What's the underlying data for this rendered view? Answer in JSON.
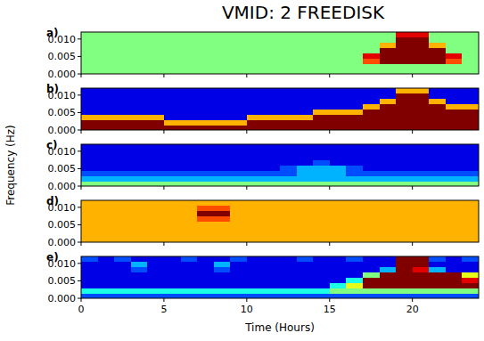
{
  "chart_data": {
    "type": "heatmap",
    "title": "VMID: 2 FREEDISK",
    "x_label": "Time (Hours)",
    "y_label": "Frequency (Hz)",
    "xlim": [
      0,
      24
    ],
    "ylim": [
      0,
      0.012
    ],
    "xticks": [
      0,
      5,
      10,
      15,
      20
    ],
    "yticks": [
      {
        "value": 0,
        "label": "0.000"
      },
      {
        "value": 0.005,
        "label": "0.005"
      },
      {
        "value": 0.01,
        "label": "0.010"
      }
    ],
    "x_bins": [
      0,
      1,
      2,
      3,
      4,
      5,
      6,
      7,
      8,
      9,
      10,
      11,
      12,
      13,
      14,
      15,
      16,
      17,
      18,
      19,
      20,
      21,
      22,
      23,
      24
    ],
    "y_bins": [
      0,
      0.0015,
      0.003,
      0.0045,
      0.006,
      0.0075,
      0.009,
      0.0105,
      0.012
    ],
    "color_range": [
      0,
      10
    ],
    "panels": [
      {
        "label": "a)",
        "cells": [
          [
            5,
            5,
            5,
            5,
            5,
            5,
            5,
            5,
            5,
            5,
            5,
            5,
            5,
            5,
            5,
            5,
            5,
            5,
            5,
            5,
            5,
            5,
            5,
            5
          ],
          [
            5,
            5,
            5,
            5,
            5,
            5,
            5,
            5,
            5,
            5,
            5,
            5,
            5,
            5,
            5,
            5,
            5,
            5,
            5,
            5,
            5,
            5,
            5,
            5
          ],
          [
            5,
            5,
            5,
            5,
            5,
            5,
            5,
            5,
            5,
            5,
            5,
            5,
            5,
            5,
            5,
            5,
            5,
            8,
            10,
            10,
            10,
            10,
            8,
            5
          ],
          [
            5,
            5,
            5,
            5,
            5,
            5,
            5,
            5,
            5,
            5,
            5,
            5,
            5,
            5,
            5,
            5,
            5,
            9,
            10,
            10,
            10,
            10,
            9,
            5
          ],
          [
            5,
            5,
            5,
            5,
            5,
            5,
            5,
            5,
            5,
            5,
            5,
            5,
            5,
            5,
            5,
            5,
            5,
            5,
            10,
            10,
            10,
            10,
            5,
            5
          ],
          [
            5,
            5,
            5,
            5,
            5,
            5,
            5,
            5,
            5,
            5,
            5,
            5,
            5,
            5,
            5,
            5,
            5,
            5,
            7,
            10,
            10,
            7,
            5,
            5
          ],
          [
            5,
            5,
            5,
            5,
            5,
            5,
            5,
            5,
            5,
            5,
            5,
            5,
            5,
            5,
            5,
            5,
            5,
            5,
            5,
            10,
            10,
            5,
            5,
            5
          ],
          [
            5,
            5,
            5,
            5,
            5,
            5,
            5,
            5,
            5,
            5,
            5,
            5,
            5,
            5,
            5,
            5,
            5,
            5,
            5,
            9,
            9,
            5,
            5,
            5
          ]
        ]
      },
      {
        "label": "b)",
        "cells": [
          [
            10,
            10,
            10,
            10,
            10,
            10,
            10,
            10,
            10,
            10,
            10,
            10,
            10,
            10,
            10,
            10,
            10,
            10,
            10,
            10,
            10,
            10,
            10,
            10
          ],
          [
            10,
            10,
            10,
            10,
            10,
            7,
            7,
            7,
            7,
            7,
            10,
            10,
            10,
            10,
            10,
            10,
            10,
            10,
            10,
            10,
            10,
            10,
            10,
            10
          ],
          [
            7,
            7,
            7,
            7,
            7,
            1,
            1,
            1,
            1,
            1,
            7,
            7,
            7,
            7,
            10,
            10,
            10,
            10,
            10,
            10,
            10,
            10,
            10,
            10
          ],
          [
            1,
            1,
            1,
            1,
            1,
            1,
            1,
            1,
            1,
            1,
            1,
            1,
            1,
            1,
            7,
            7,
            7,
            10,
            10,
            10,
            10,
            10,
            10,
            10
          ],
          [
            1,
            1,
            1,
            1,
            1,
            1,
            1,
            1,
            1,
            1,
            1,
            1,
            1,
            1,
            1,
            1,
            1,
            7,
            10,
            10,
            10,
            10,
            7,
            7
          ],
          [
            1,
            1,
            1,
            1,
            1,
            1,
            1,
            1,
            1,
            1,
            1,
            1,
            1,
            1,
            1,
            1,
            1,
            1,
            7,
            10,
            10,
            7,
            1,
            1
          ],
          [
            1,
            1,
            1,
            1,
            1,
            1,
            1,
            1,
            1,
            1,
            1,
            1,
            1,
            1,
            1,
            1,
            1,
            1,
            1,
            10,
            10,
            1,
            1,
            1
          ],
          [
            1,
            1,
            1,
            1,
            1,
            1,
            1,
            1,
            1,
            1,
            1,
            1,
            1,
            1,
            1,
            1,
            1,
            1,
            1,
            7,
            7,
            1,
            1,
            1
          ]
        ]
      },
      {
        "label": "c)",
        "cells": [
          [
            5,
            5,
            5,
            5,
            5,
            5,
            5,
            5,
            5,
            5,
            5,
            5,
            5,
            5,
            5,
            5,
            5,
            5,
            5,
            5,
            5,
            5,
            5,
            5
          ],
          [
            3,
            3,
            3,
            3,
            3,
            3,
            3,
            3,
            3,
            3,
            3,
            3,
            3,
            3,
            3,
            3,
            3,
            3,
            3,
            3,
            3,
            3,
            3,
            3
          ],
          [
            2,
            2,
            2,
            2,
            2,
            2,
            2,
            2,
            2,
            2,
            2,
            2,
            2,
            3,
            3,
            3,
            2,
            2,
            2,
            2,
            2,
            2,
            2,
            2
          ],
          [
            1,
            1,
            1,
            1,
            1,
            1,
            1,
            1,
            1,
            1,
            1,
            1,
            2,
            3,
            3,
            3,
            2,
            1,
            1,
            1,
            1,
            1,
            1,
            1
          ],
          [
            1,
            1,
            1,
            1,
            1,
            1,
            1,
            1,
            1,
            1,
            1,
            1,
            1,
            1,
            2,
            1,
            1,
            1,
            1,
            1,
            1,
            1,
            1,
            1
          ],
          [
            1,
            1,
            1,
            1,
            1,
            1,
            1,
            1,
            1,
            1,
            1,
            1,
            1,
            1,
            1,
            1,
            1,
            1,
            1,
            1,
            1,
            1,
            1,
            1
          ],
          [
            1,
            1,
            1,
            1,
            1,
            1,
            1,
            1,
            1,
            1,
            1,
            1,
            1,
            1,
            1,
            1,
            1,
            1,
            1,
            1,
            1,
            1,
            1,
            1
          ],
          [
            1,
            1,
            1,
            1,
            1,
            1,
            1,
            1,
            1,
            1,
            1,
            1,
            1,
            1,
            1,
            1,
            1,
            1,
            1,
            1,
            1,
            1,
            1,
            1
          ]
        ]
      },
      {
        "label": "d)",
        "cells": [
          [
            7,
            7,
            7,
            7,
            7,
            7,
            7,
            7,
            7,
            7,
            7,
            7,
            7,
            7,
            7,
            7,
            7,
            7,
            7,
            7,
            7,
            7,
            7,
            7
          ],
          [
            7,
            7,
            7,
            7,
            7,
            7,
            7,
            7,
            7,
            7,
            7,
            7,
            7,
            7,
            7,
            7,
            7,
            7,
            7,
            7,
            7,
            7,
            7,
            7
          ],
          [
            7,
            7,
            7,
            7,
            7,
            7,
            7,
            7,
            7,
            7,
            7,
            7,
            7,
            7,
            7,
            7,
            7,
            7,
            7,
            7,
            7,
            7,
            7,
            7
          ],
          [
            7,
            7,
            7,
            7,
            7,
            7,
            7,
            7,
            7,
            7,
            7,
            7,
            7,
            7,
            7,
            7,
            7,
            7,
            7,
            7,
            7,
            7,
            7,
            7
          ],
          [
            7,
            7,
            7,
            7,
            7,
            7,
            7,
            8,
            8,
            7,
            7,
            7,
            7,
            7,
            7,
            7,
            7,
            7,
            7,
            7,
            7,
            7,
            7,
            7
          ],
          [
            7,
            7,
            7,
            7,
            7,
            7,
            7,
            10,
            10,
            7,
            7,
            7,
            7,
            7,
            7,
            7,
            7,
            7,
            7,
            7,
            7,
            7,
            7,
            7
          ],
          [
            7,
            7,
            7,
            7,
            7,
            7,
            7,
            8,
            8,
            7,
            7,
            7,
            7,
            7,
            7,
            7,
            7,
            7,
            7,
            7,
            7,
            7,
            7,
            7
          ],
          [
            7,
            7,
            7,
            7,
            7,
            7,
            7,
            7,
            7,
            7,
            7,
            7,
            7,
            7,
            7,
            7,
            7,
            7,
            7,
            7,
            7,
            7,
            7,
            7
          ]
        ]
      },
      {
        "label": "e)",
        "cells": [
          [
            2,
            2,
            2,
            2,
            2,
            2,
            2,
            2,
            2,
            2,
            2,
            2,
            2,
            2,
            2,
            2,
            2,
            2,
            2,
            2,
            2,
            2,
            2,
            2
          ],
          [
            4,
            4,
            4,
            4,
            4,
            4,
            4,
            4,
            4,
            4,
            4,
            4,
            4,
            4,
            4,
            5,
            5,
            5,
            5,
            5,
            5,
            5,
            5,
            5
          ],
          [
            1,
            1,
            1,
            1,
            1,
            1,
            1,
            1,
            1,
            1,
            1,
            1,
            1,
            1,
            1,
            4,
            6,
            10,
            10,
            10,
            10,
            10,
            10,
            10
          ],
          [
            1,
            1,
            1,
            1,
            1,
            1,
            1,
            1,
            1,
            1,
            1,
            1,
            1,
            1,
            1,
            1,
            4,
            10,
            10,
            10,
            10,
            10,
            10,
            9
          ],
          [
            1,
            1,
            1,
            1,
            1,
            1,
            1,
            1,
            1,
            1,
            1,
            1,
            1,
            1,
            1,
            1,
            1,
            5,
            10,
            10,
            10,
            10,
            10,
            6
          ],
          [
            1,
            1,
            1,
            2,
            1,
            1,
            1,
            1,
            2,
            1,
            1,
            1,
            1,
            1,
            1,
            1,
            1,
            1,
            3,
            10,
            9,
            3,
            1,
            1
          ],
          [
            1,
            1,
            1,
            3,
            1,
            1,
            1,
            1,
            3,
            1,
            1,
            1,
            1,
            1,
            1,
            1,
            1,
            1,
            1,
            10,
            10,
            1,
            1,
            1
          ],
          [
            2,
            1,
            2,
            1,
            1,
            1,
            2,
            1,
            1,
            2,
            1,
            1,
            1,
            2,
            1,
            1,
            2,
            1,
            1,
            10,
            10,
            2,
            1,
            2
          ]
        ]
      }
    ]
  }
}
